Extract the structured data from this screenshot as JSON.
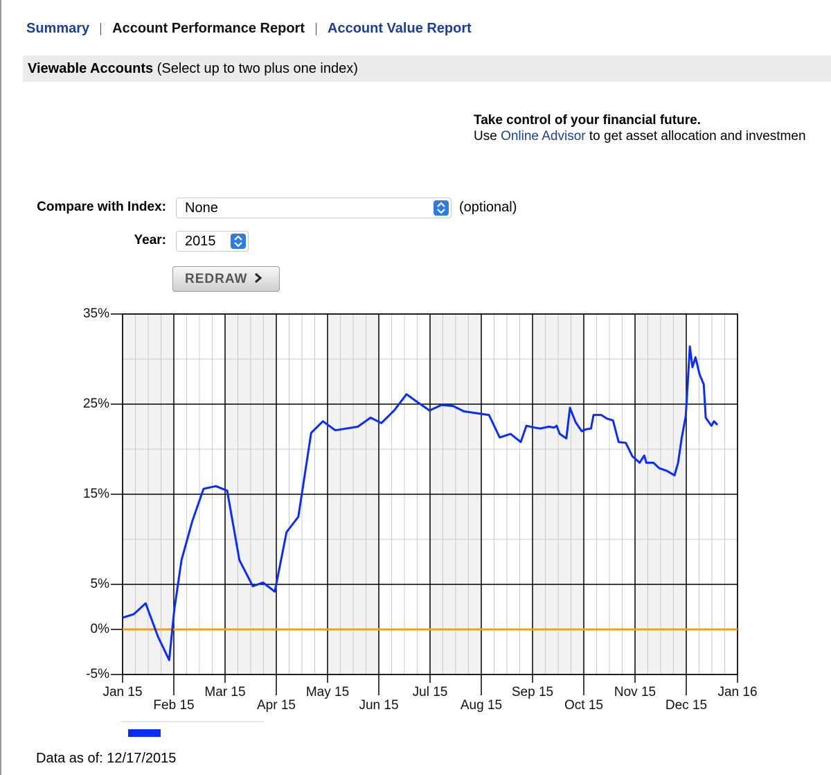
{
  "nav": {
    "links": [
      "Summary",
      "Account Performance Report",
      "Account Value Report"
    ]
  },
  "accounts_bar": {
    "title": "Viewable Accounts",
    "hint": "(Select up to two plus one index)"
  },
  "promo": {
    "headline": "Take control of your financial future.",
    "lead": "Use",
    "link": "Online Advisor",
    "rest": "to get asset allocation and investmen"
  },
  "form": {
    "index_label": "Compare with Index:",
    "index_value": "None",
    "index_note": "(optional)",
    "year_label": "Year:",
    "year_value": "2015",
    "button": "REDRAW"
  },
  "chart_data": {
    "type": "line",
    "x": [
      0,
      0.22,
      0.45,
      0.69,
      0.91,
      1.01,
      1.15,
      1.36,
      1.58,
      1.82,
      2.04,
      2.28,
      2.54,
      2.74,
      2.97,
      3.2,
      3.43,
      3.68,
      3.91,
      4.15,
      4.59,
      4.84,
      5.05,
      5.3,
      5.54,
      5.76,
      5.99,
      6.22,
      6.45,
      6.66,
      7.15,
      7.36,
      7.57,
      7.77,
      7.88,
      8.04,
      8.15,
      8.32,
      8.42,
      8.47,
      8.53,
      8.66,
      8.73,
      8.84,
      8.96,
      9.04,
      9.14,
      9.19,
      9.34,
      9.45,
      9.57,
      9.68,
      9.82,
      9.95,
      10.09,
      10.18,
      10.22,
      10.36,
      10.47,
      10.62,
      10.77,
      10.84,
      10.91,
      10.99,
      11.07,
      11.12,
      11.18,
      11.26,
      11.34,
      11.38,
      11.49,
      11.54,
      11.61
    ],
    "series": [
      {
        "color": "#0a2cff",
        "values": [
          1.3,
          1.7,
          2.9,
          -0.8,
          -3.4,
          2.2,
          7.7,
          12.0,
          15.6,
          15.9,
          15.4,
          7.7,
          4.8,
          5.2,
          4.2,
          10.8,
          12.5,
          21.8,
          23.1,
          22.1,
          22.5,
          23.5,
          22.9,
          24.3,
          26.1,
          25.2,
          24.3,
          24.9,
          24.8,
          24.2,
          23.8,
          21.3,
          21.7,
          20.8,
          22.6,
          22.4,
          22.3,
          22.5,
          22.4,
          22.6,
          21.7,
          21.2,
          24.6,
          23.0,
          22.0,
          22.2,
          22.3,
          23.8,
          23.8,
          23.4,
          23.2,
          20.8,
          20.7,
          19.2,
          18.5,
          19.3,
          18.5,
          18.5,
          17.9,
          17.6,
          17.1,
          18.5,
          21.2,
          23.7,
          31.4,
          29.1,
          30.2,
          28.3,
          27.2,
          23.5,
          22.6,
          23.1,
          22.7
        ]
      }
    ],
    "xlim": [
      0,
      12
    ],
    "xticks": [
      {
        "value": 0,
        "label": "Jan 15"
      },
      {
        "value": 1,
        "label": "Feb 15"
      },
      {
        "value": 2,
        "label": "Mar 15"
      },
      {
        "value": 3,
        "label": "Apr 15"
      },
      {
        "value": 4,
        "label": "May 15"
      },
      {
        "value": 5,
        "label": "Jun 15"
      },
      {
        "value": 6,
        "label": "Jul 15"
      },
      {
        "value": 7,
        "label": "Aug 15"
      },
      {
        "value": 8,
        "label": "Sep 15"
      },
      {
        "value": 9,
        "label": "Oct 15"
      },
      {
        "value": 10,
        "label": "Nov 15"
      },
      {
        "value": 11,
        "label": "Dec 15"
      },
      {
        "value": 12,
        "label": "Jan 16"
      }
    ],
    "ylim": [
      -5,
      35
    ],
    "yticks": [
      {
        "value": -5,
        "label": "-5%"
      },
      {
        "value": 0,
        "label": "0%"
      },
      {
        "value": 5,
        "label": "5%"
      },
      {
        "value": 15,
        "label": "15%"
      },
      {
        "value": 25,
        "label": "25%"
      },
      {
        "value": 35,
        "label": "35%"
      }
    ],
    "y_minor_grid": [
      10,
      20,
      30
    ],
    "zero_line_color": "#f2a20c",
    "grid": true
  },
  "footer": {
    "data_as_of": "Data as of: 12/17/2015"
  }
}
